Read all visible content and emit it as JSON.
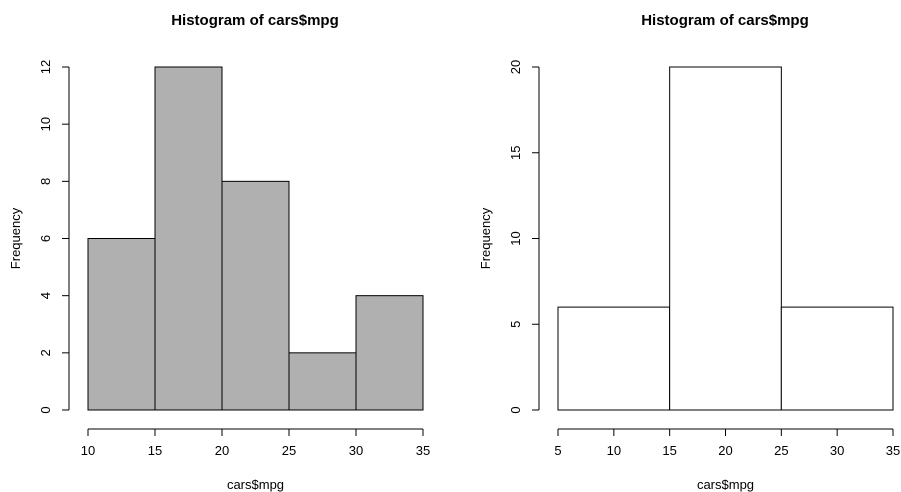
{
  "chart_data": [
    {
      "type": "bar",
      "title": "Histogram of cars$mpg",
      "xlabel": "cars$mpg",
      "ylabel": "Frequency",
      "bins": [
        {
          "from": 10,
          "to": 15,
          "count": 6
        },
        {
          "from": 15,
          "to": 20,
          "count": 12
        },
        {
          "from": 20,
          "to": 25,
          "count": 8
        },
        {
          "from": 25,
          "to": 30,
          "count": 2
        },
        {
          "from": 30,
          "to": 35,
          "count": 4
        }
      ],
      "xlim": [
        10,
        35
      ],
      "ylim": [
        0,
        12
      ],
      "x_ticks": [
        "10",
        "15",
        "20",
        "25",
        "30",
        "35"
      ],
      "y_ticks": [
        "0",
        "2",
        "4",
        "6",
        "8",
        "10",
        "12"
      ],
      "bar_fill": "#b0b0b0",
      "bar_stroke": "#000000",
      "grid": false
    },
    {
      "type": "bar",
      "title": "Histogram of cars$mpg",
      "xlabel": "cars$mpg",
      "ylabel": "Frequency",
      "bins": [
        {
          "from": 5,
          "to": 15,
          "count": 6
        },
        {
          "from": 15,
          "to": 25,
          "count": 20
        },
        {
          "from": 25,
          "to": 35,
          "count": 6
        }
      ],
      "xlim": [
        5,
        35
      ],
      "ylim": [
        0,
        20
      ],
      "x_ticks": [
        "5",
        "10",
        "15",
        "20",
        "25",
        "30",
        "35"
      ],
      "y_ticks": [
        "0",
        "5",
        "10",
        "15",
        "20"
      ],
      "bar_fill": "#ffffff",
      "bar_stroke": "#000000",
      "grid": false
    }
  ]
}
